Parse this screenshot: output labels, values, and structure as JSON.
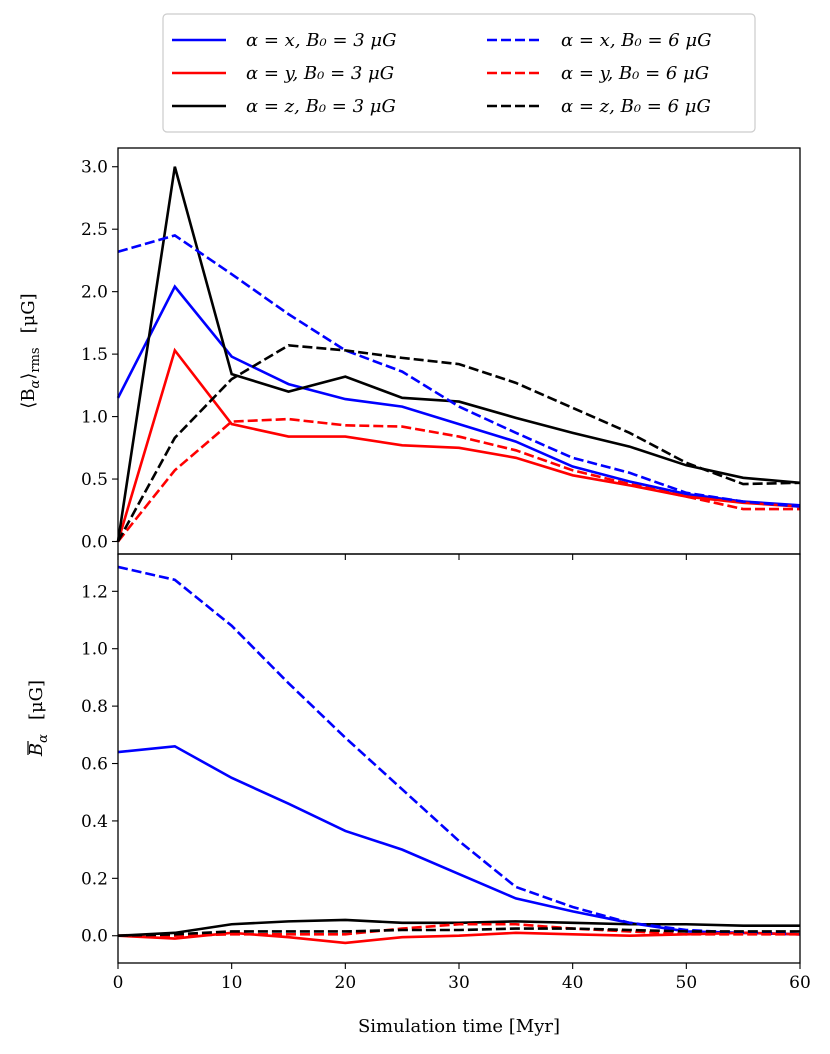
{
  "chart_data": [
    {
      "type": "line",
      "panel": "top",
      "ylabel": "⟨B_α⟩_rms   [μG]",
      "ylabel_main": "⟨B",
      "ylabel_sub1": "α",
      "ylabel_after": "⟩",
      "ylabel_sub2": "rms",
      "ylabel_unit": "[μG]",
      "xlabel": "",
      "xlim": [
        0,
        60
      ],
      "ylim": [
        -0.1,
        3.15
      ],
      "yticks": [
        "0.0",
        "0.5",
        "1.0",
        "1.5",
        "2.0",
        "2.5",
        "3.0"
      ],
      "ytick_values": [
        0.0,
        0.5,
        1.0,
        1.5,
        2.0,
        2.5,
        3.0
      ],
      "x": [
        0,
        5,
        10,
        15,
        20,
        25,
        30,
        35,
        40,
        45,
        50,
        55,
        60
      ],
      "series": [
        {
          "name": "α = x, B0 = 3 μG",
          "color": "#0000ff",
          "dash": "solid",
          "values": [
            1.15,
            2.04,
            1.48,
            1.26,
            1.14,
            1.08,
            0.94,
            0.8,
            0.6,
            0.48,
            0.38,
            0.32,
            0.29
          ]
        },
        {
          "name": "α = y, B0 = 3 μG",
          "color": "#ff0000",
          "dash": "solid",
          "values": [
            0.0,
            1.53,
            0.94,
            0.84,
            0.84,
            0.77,
            0.75,
            0.67,
            0.53,
            0.45,
            0.36,
            0.31,
            0.28
          ]
        },
        {
          "name": "α = z, B0 = 3 μG",
          "color": "#000000",
          "dash": "solid",
          "values": [
            0.0,
            3.0,
            1.34,
            1.2,
            1.32,
            1.15,
            1.12,
            0.99,
            0.87,
            0.76,
            0.61,
            0.51,
            0.47
          ]
        },
        {
          "name": "α = x, B0 = 6 μG",
          "color": "#0000ff",
          "dash": "dashed",
          "values": [
            2.32,
            2.45,
            2.14,
            1.82,
            1.53,
            1.36,
            1.08,
            0.87,
            0.67,
            0.55,
            0.39,
            0.32,
            0.28
          ]
        },
        {
          "name": "α = y, B0 = 6 μG",
          "color": "#ff0000",
          "dash": "dashed",
          "values": [
            0.0,
            0.57,
            0.96,
            0.98,
            0.93,
            0.92,
            0.84,
            0.73,
            0.57,
            0.46,
            0.36,
            0.26,
            0.26
          ]
        },
        {
          "name": "α = z, B0 = 6 μG",
          "color": "#000000",
          "dash": "dashed",
          "values": [
            0.0,
            0.83,
            1.3,
            1.57,
            1.53,
            1.47,
            1.42,
            1.27,
            1.07,
            0.87,
            0.63,
            0.46,
            0.47
          ]
        }
      ]
    },
    {
      "type": "line",
      "panel": "bottom",
      "ylabel": "B̄_α   [μG]",
      "ylabel_main": "B",
      "ylabel_sub1": "α",
      "ylabel_unit": "[μG]",
      "xlabel": "Simulation time [Myr]",
      "xlim": [
        0,
        60
      ],
      "ylim": [
        -0.095,
        1.33
      ],
      "yticks": [
        "0.0",
        "0.2",
        "0.4",
        "0.6",
        "0.8",
        "1.0",
        "1.2"
      ],
      "ytick_values": [
        0.0,
        0.2,
        0.4,
        0.6,
        0.8,
        1.0,
        1.2
      ],
      "xticks": [
        "0",
        "10",
        "20",
        "30",
        "40",
        "50",
        "60"
      ],
      "xtick_values": [
        0,
        10,
        20,
        30,
        40,
        50,
        60
      ],
      "x": [
        0,
        5,
        10,
        15,
        20,
        25,
        30,
        35,
        40,
        45,
        50,
        55,
        60
      ],
      "series": [
        {
          "name": "α = x, B0 = 3 μG",
          "color": "#0000ff",
          "dash": "solid",
          "values": [
            0.64,
            0.66,
            0.55,
            0.46,
            0.365,
            0.3,
            0.215,
            0.13,
            0.085,
            0.045,
            0.015,
            0.01,
            0.005
          ]
        },
        {
          "name": "α = y, B0 = 3 μG",
          "color": "#ff0000",
          "dash": "solid",
          "values": [
            0.0,
            -0.01,
            0.01,
            -0.005,
            -0.025,
            -0.005,
            0.0,
            0.01,
            0.005,
            0.0,
            0.005,
            0.01,
            0.005
          ]
        },
        {
          "name": "α = z, B0 = 3 μG",
          "color": "#000000",
          "dash": "solid",
          "values": [
            0.0,
            0.01,
            0.04,
            0.05,
            0.055,
            0.045,
            0.045,
            0.05,
            0.045,
            0.04,
            0.04,
            0.035,
            0.035
          ]
        },
        {
          "name": "α = x, B0 = 6 μG",
          "color": "#0000ff",
          "dash": "dashed",
          "values": [
            1.285,
            1.24,
            1.08,
            0.88,
            0.69,
            0.51,
            0.33,
            0.17,
            0.1,
            0.045,
            0.02,
            0.01,
            0.005
          ]
        },
        {
          "name": "α = y, B0 = 6 μG",
          "color": "#ff0000",
          "dash": "dashed",
          "values": [
            0.0,
            0.0,
            0.005,
            0.005,
            0.005,
            0.025,
            0.04,
            0.04,
            0.025,
            0.015,
            0.005,
            0.005,
            0.005
          ]
        },
        {
          "name": "α = z, B0 = 6 μG",
          "color": "#000000",
          "dash": "dashed",
          "values": [
            0.0,
            0.005,
            0.015,
            0.015,
            0.015,
            0.02,
            0.02,
            0.025,
            0.025,
            0.02,
            0.015,
            0.015,
            0.015
          ]
        }
      ]
    }
  ],
  "legend": {
    "placement": "top-center",
    "entries": [
      {
        "text": "α = x, B₀ = 3 μG",
        "color": "#0000ff",
        "dash": "solid"
      },
      {
        "text": "α = y, B₀ = 3 μG",
        "color": "#ff0000",
        "dash": "solid"
      },
      {
        "text": "α = z, B₀ = 3 μG",
        "color": "#000000",
        "dash": "solid"
      },
      {
        "text": "α = x, B₀ = 6 μG",
        "color": "#0000ff",
        "dash": "dashed"
      },
      {
        "text": "α = y, B₀ = 6 μG",
        "color": "#ff0000",
        "dash": "dashed"
      },
      {
        "text": "α = z, B₀ = 6 μG",
        "color": "#000000",
        "dash": "dashed"
      }
    ]
  }
}
